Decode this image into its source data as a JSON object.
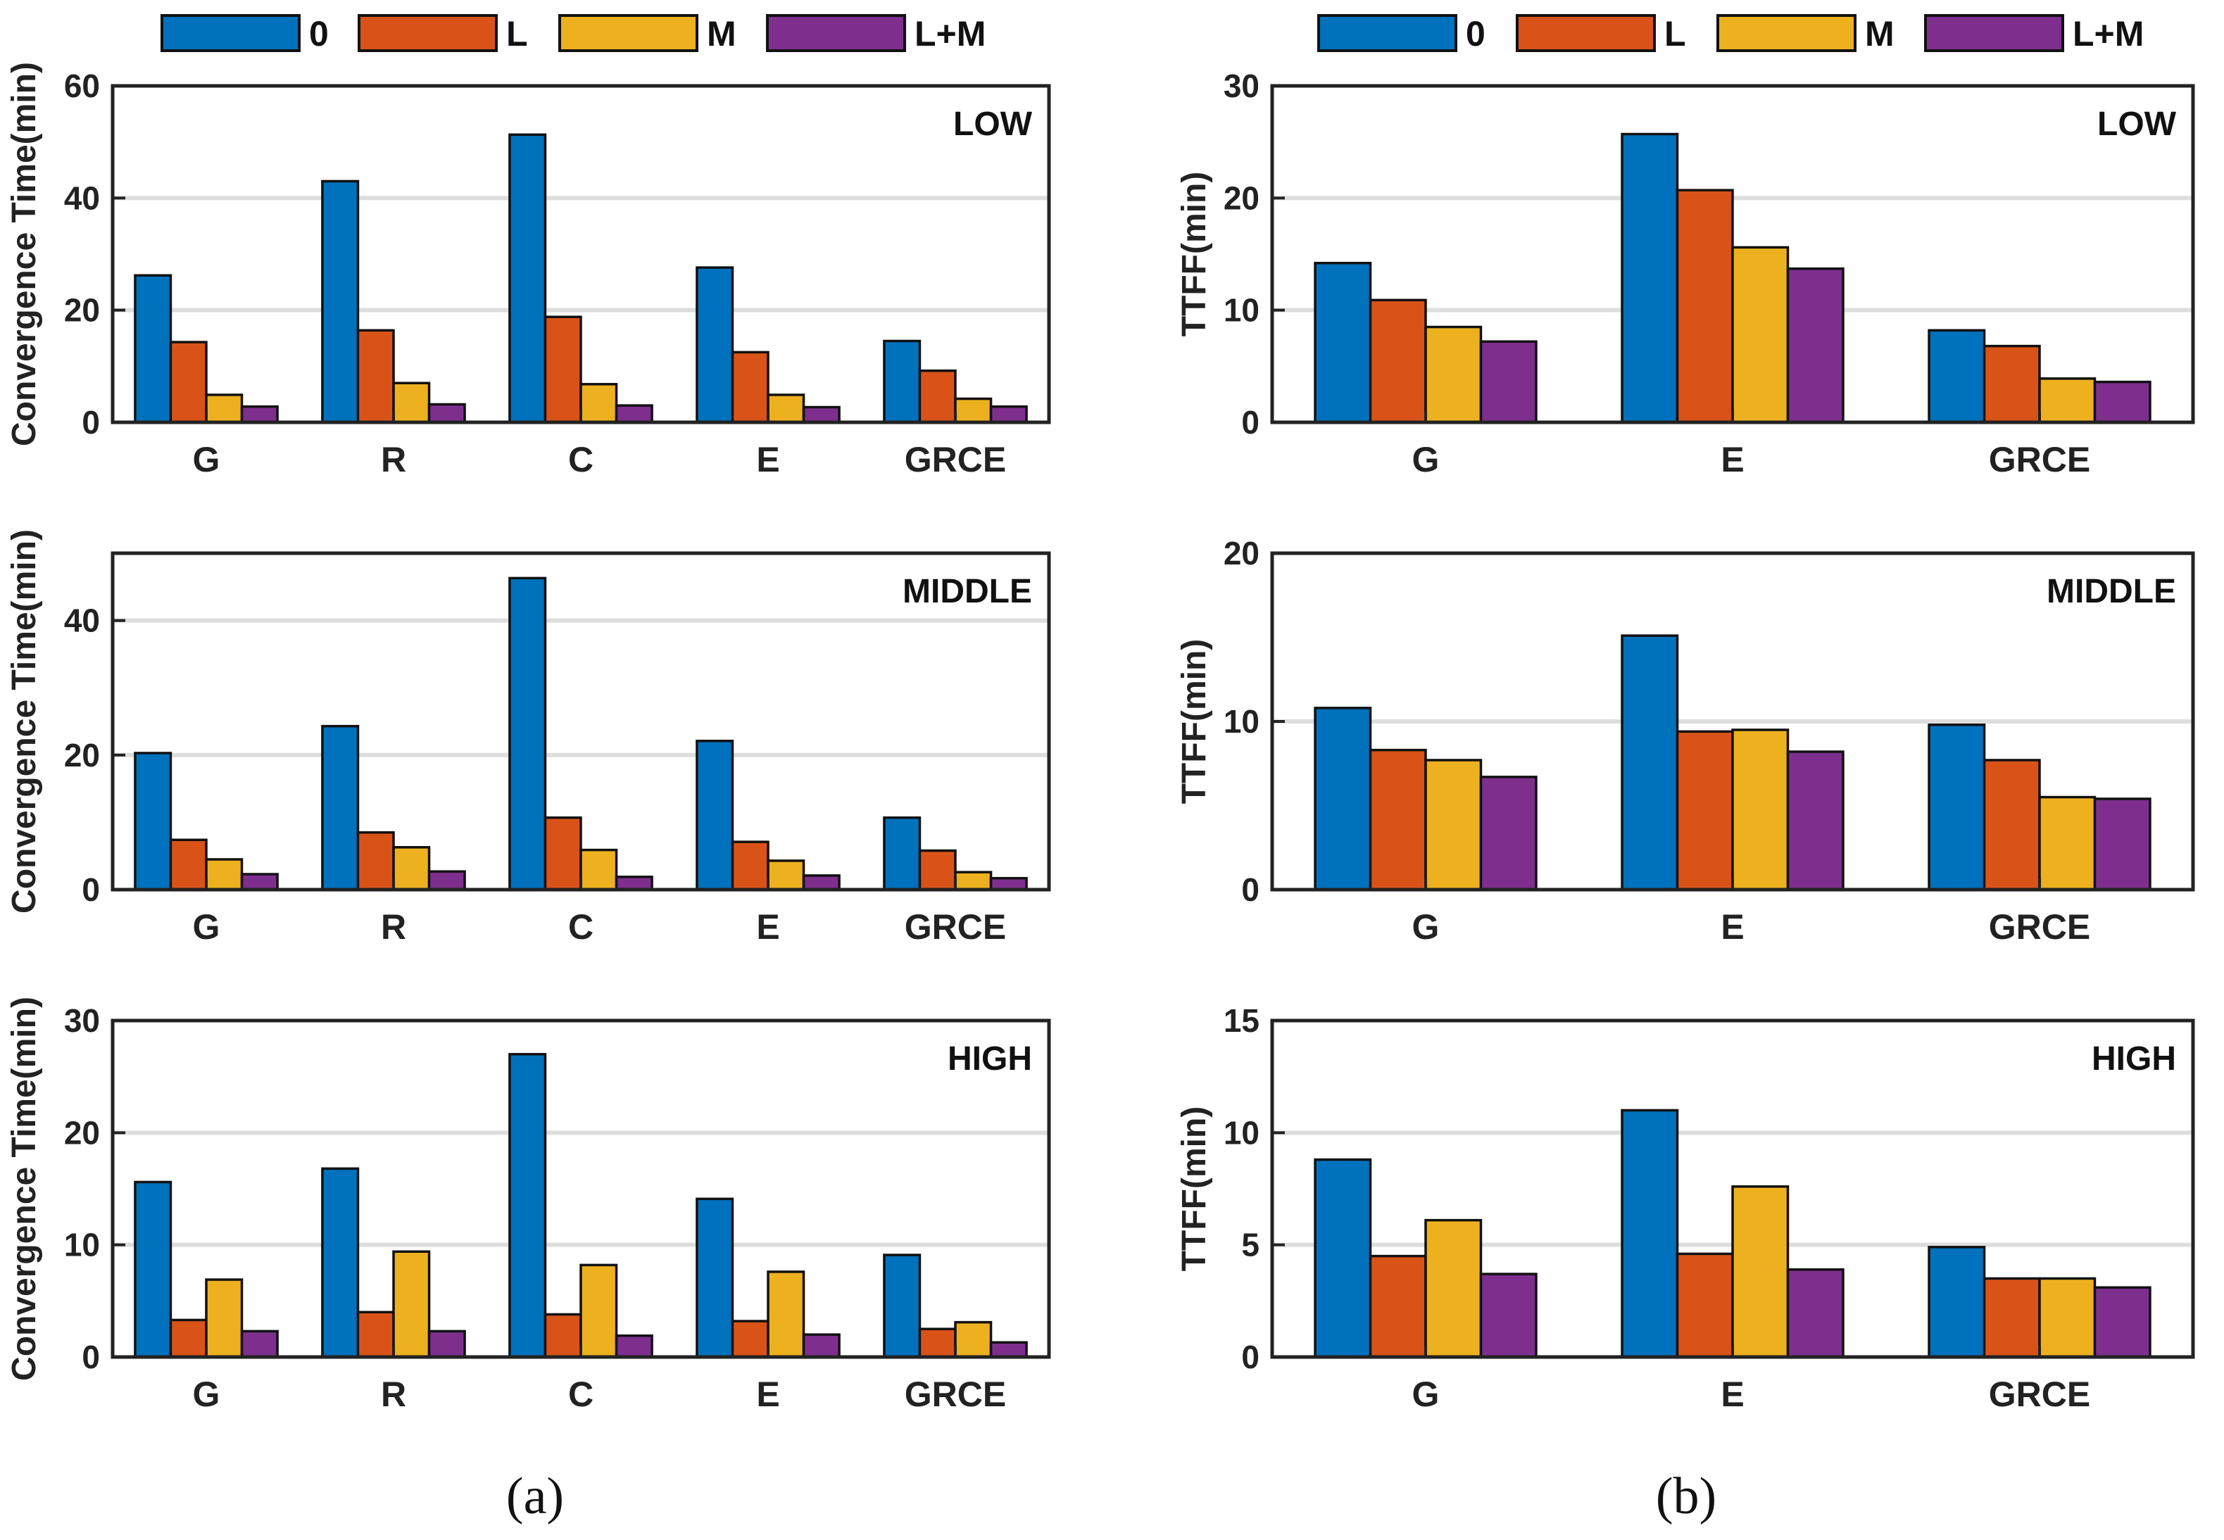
{
  "legend": {
    "entries": [
      {
        "label": "0",
        "color": "#0072BD"
      },
      {
        "label": "L",
        "color": "#D95319"
      },
      {
        "label": "M",
        "color": "#EDB120"
      },
      {
        "label": "L+M",
        "color": "#7E2F8E"
      }
    ]
  },
  "subfigure_labels": {
    "a": "(a)",
    "b": "(b)"
  },
  "chart_data": [
    {
      "type": "bar",
      "panel": "a-low",
      "title": "LOW",
      "xlabel": "",
      "ylabel": "Convergence Time(min)",
      "categories": [
        "G",
        "R",
        "C",
        "E",
        "GRCE"
      ],
      "ylim": [
        0,
        60
      ],
      "yticks": [
        0,
        20,
        40,
        60
      ],
      "grid": true,
      "series": [
        {
          "name": "0",
          "values": [
            26.2,
            43.0,
            51.3,
            27.6,
            14.5
          ]
        },
        {
          "name": "L",
          "values": [
            14.3,
            16.4,
            18.8,
            12.5,
            9.2
          ]
        },
        {
          "name": "M",
          "values": [
            4.9,
            7.0,
            6.8,
            4.9,
            4.2
          ]
        },
        {
          "name": "L+M",
          "values": [
            2.8,
            3.2,
            3.0,
            2.7,
            2.8
          ]
        }
      ]
    },
    {
      "type": "bar",
      "panel": "a-middle",
      "title": "MIDDLE",
      "xlabel": "",
      "ylabel": "Convergence Time(min)",
      "categories": [
        "G",
        "R",
        "C",
        "E",
        "GRCE"
      ],
      "ylim": [
        0,
        50
      ],
      "yticks": [
        0,
        20,
        40
      ],
      "grid": true,
      "series": [
        {
          "name": "0",
          "values": [
            20.3,
            24.3,
            46.3,
            22.1,
            10.7
          ]
        },
        {
          "name": "L",
          "values": [
            7.4,
            8.5,
            10.7,
            7.1,
            5.8
          ]
        },
        {
          "name": "M",
          "values": [
            4.5,
            6.3,
            5.9,
            4.3,
            2.6
          ]
        },
        {
          "name": "L+M",
          "values": [
            2.3,
            2.7,
            1.9,
            2.1,
            1.7
          ]
        }
      ]
    },
    {
      "type": "bar",
      "panel": "a-high",
      "title": "HIGH",
      "xlabel": "",
      "ylabel": "Convergence Time(min)",
      "categories": [
        "G",
        "R",
        "C",
        "E",
        "GRCE"
      ],
      "ylim": [
        0,
        30
      ],
      "yticks": [
        0,
        10,
        20,
        30
      ],
      "grid": true,
      "series": [
        {
          "name": "0",
          "values": [
            15.6,
            16.8,
            27.0,
            14.1,
            9.1
          ]
        },
        {
          "name": "L",
          "values": [
            3.3,
            4.0,
            3.8,
            3.2,
            2.5
          ]
        },
        {
          "name": "M",
          "values": [
            6.9,
            9.4,
            8.2,
            7.6,
            3.1
          ]
        },
        {
          "name": "L+M",
          "values": [
            2.3,
            2.3,
            1.9,
            2.0,
            1.3
          ]
        }
      ]
    },
    {
      "type": "bar",
      "panel": "b-low",
      "title": "LOW",
      "xlabel": "",
      "ylabel": "TTFF(min)",
      "categories": [
        "G",
        "E",
        "GRCE"
      ],
      "ylim": [
        0,
        30
      ],
      "yticks": [
        0,
        10,
        20,
        30
      ],
      "grid": true,
      "series": [
        {
          "name": "0",
          "values": [
            14.2,
            25.7,
            8.2
          ]
        },
        {
          "name": "L",
          "values": [
            10.9,
            20.7,
            6.8
          ]
        },
        {
          "name": "M",
          "values": [
            8.5,
            15.6,
            3.9
          ]
        },
        {
          "name": "L+M",
          "values": [
            7.2,
            13.7,
            3.6
          ]
        }
      ]
    },
    {
      "type": "bar",
      "panel": "b-middle",
      "title": "MIDDLE",
      "xlabel": "",
      "ylabel": "TTFF(min)",
      "categories": [
        "G",
        "E",
        "GRCE"
      ],
      "ylim": [
        0,
        20
      ],
      "yticks": [
        0,
        10,
        20
      ],
      "grid": true,
      "series": [
        {
          "name": "0",
          "values": [
            10.8,
            15.1,
            9.8
          ]
        },
        {
          "name": "L",
          "values": [
            8.3,
            9.4,
            7.7
          ]
        },
        {
          "name": "M",
          "values": [
            7.7,
            9.5,
            5.5
          ]
        },
        {
          "name": "L+M",
          "values": [
            6.7,
            8.2,
            5.4
          ]
        }
      ]
    },
    {
      "type": "bar",
      "panel": "b-high",
      "title": "HIGH",
      "xlabel": "",
      "ylabel": "TTFF(min)",
      "categories": [
        "G",
        "E",
        "GRCE"
      ],
      "ylim": [
        0,
        15
      ],
      "yticks": [
        0,
        5,
        10,
        15
      ],
      "grid": true,
      "series": [
        {
          "name": "0",
          "values": [
            8.8,
            11.0,
            4.9
          ]
        },
        {
          "name": "L",
          "values": [
            4.5,
            4.6,
            3.5
          ]
        },
        {
          "name": "M",
          "values": [
            6.1,
            7.6,
            3.5
          ]
        },
        {
          "name": "L+M",
          "values": [
            3.7,
            3.9,
            3.1
          ]
        }
      ]
    }
  ]
}
